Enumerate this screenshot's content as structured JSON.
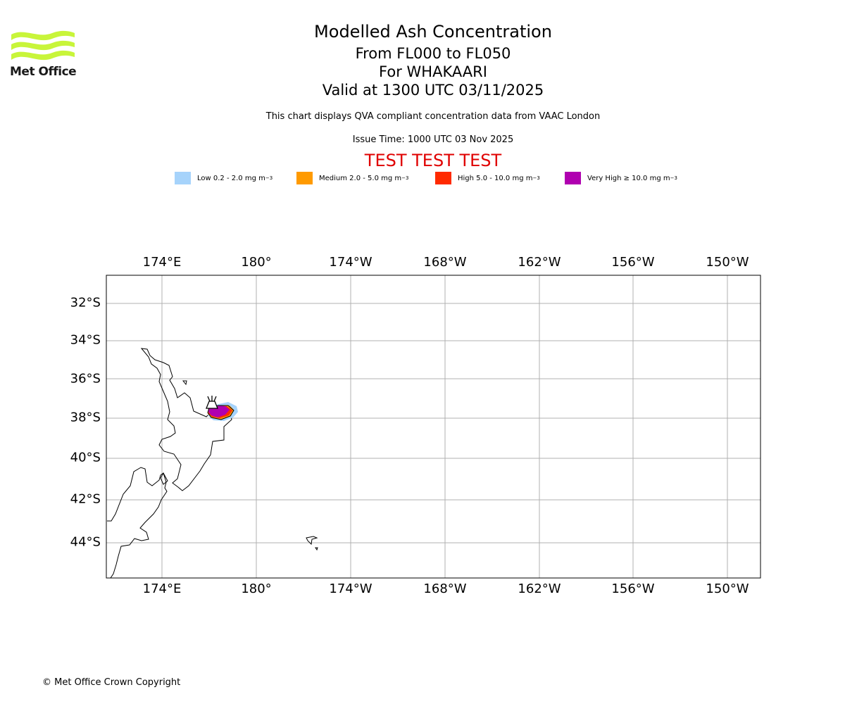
{
  "header": {
    "logo_text": "Met Office",
    "title": "Modelled Ash Concentration",
    "levels": "From FL000 to FL050",
    "volcano": "For WHAKAARI",
    "valid_time": "Valid at 1300 UTC 03/11/2025",
    "description": "This chart displays QVA compliant concentration data from VAAC London",
    "issue_time": "Issue Time: 1000 UTC 03 Nov 2025",
    "test_banner": "TEST TEST TEST"
  },
  "legend": [
    {
      "label": "Low 0.2 - 2.0 mg m",
      "unit_exp": "−3",
      "color": "#a6d3fb"
    },
    {
      "label": "Medium 2.0 - 5.0 mg m",
      "unit_exp": "−3",
      "color": "#ff9a00"
    },
    {
      "label": "High 5.0 - 10.0 mg m",
      "unit_exp": "−3",
      "color": "#ff2a00"
    },
    {
      "label": "Very High  ≥  10.0 mg m",
      "unit_exp": "−3",
      "color": "#b000b0"
    }
  ],
  "map": {
    "lon_labels": [
      "174°E",
      "180°",
      "174°W",
      "168°W",
      "162°W",
      "156°W",
      "150°W"
    ],
    "lat_labels": [
      "32°S",
      "34°S",
      "36°S",
      "38°S",
      "40°S",
      "42°S",
      "44°S"
    ],
    "colors": {
      "grid": "#b0b0b0",
      "coast": "#000000"
    }
  },
  "footer": {
    "copyright": "© Met Office Crown Copyright"
  }
}
